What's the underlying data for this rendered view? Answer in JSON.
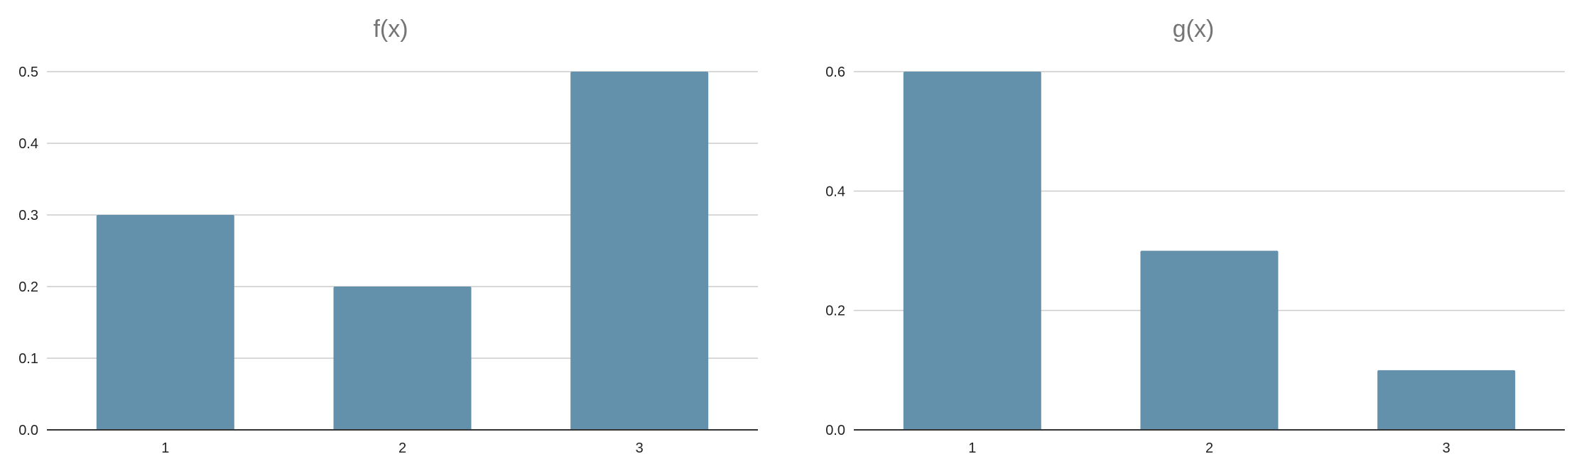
{
  "chart_data": [
    {
      "type": "bar",
      "title": "f(x)",
      "categories": [
        "1",
        "2",
        "3"
      ],
      "values": [
        0.3,
        0.2,
        0.5
      ],
      "xlabel": "",
      "ylabel": "",
      "ylim": [
        0,
        0.5
      ],
      "yticks": [
        "0.0",
        "0.1",
        "0.2",
        "0.3",
        "0.4",
        "0.5"
      ],
      "grid": true,
      "bar_color": "#6391AB"
    },
    {
      "type": "bar",
      "title": "g(x)",
      "categories": [
        "1",
        "2",
        "3"
      ],
      "values": [
        0.6,
        0.3,
        0.1
      ],
      "xlabel": "",
      "ylabel": "",
      "ylim": [
        0,
        0.6
      ],
      "yticks": [
        "0.0",
        "0.2",
        "0.4",
        "0.6"
      ],
      "grid": true,
      "bar_color": "#6391AB"
    }
  ]
}
